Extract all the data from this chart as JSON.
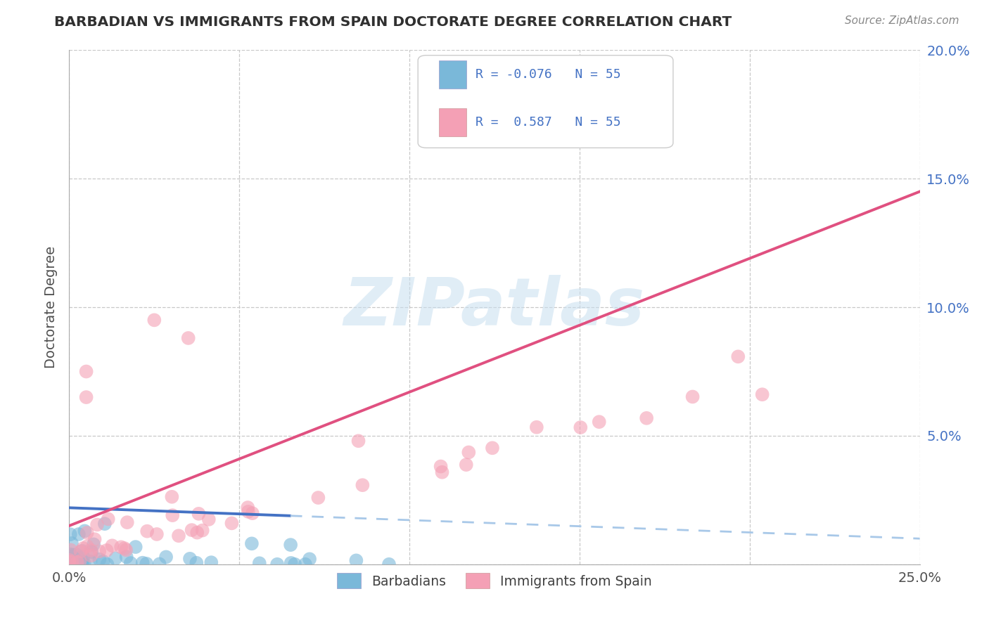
{
  "title": "BARBADIAN VS IMMIGRANTS FROM SPAIN DOCTORATE DEGREE CORRELATION CHART",
  "source": "Source: ZipAtlas.com",
  "ylabel": "Doctorate Degree",
  "xlim": [
    0.0,
    0.25
  ],
  "ylim": [
    0.0,
    0.2
  ],
  "xticks": [
    0.0,
    0.05,
    0.1,
    0.15,
    0.2,
    0.25
  ],
  "yticks": [
    0.0,
    0.05,
    0.1,
    0.15,
    0.2
  ],
  "xticklabels_show": [
    "0.0%",
    "",
    "",
    "",
    "",
    "25.0%"
  ],
  "yticklabels_right": [
    "",
    "5.0%",
    "10.0%",
    "15.0%",
    "20.0%"
  ],
  "r_barbadian": -0.076,
  "n_barbadian": 55,
  "r_spain": 0.587,
  "n_spain": 55,
  "color_barbadian": "#7ab8d9",
  "color_spain": "#f4a0b5",
  "color_barbadian_line_solid": "#4472c4",
  "color_barbadian_line_dash": "#a8c8e8",
  "color_spain_line": "#e05080",
  "background_color": "#ffffff",
  "grid_color": "#c8c8c8",
  "title_color": "#303030",
  "axis_label_color": "#505050",
  "watermark_text": "ZIPatlas",
  "watermark_color": "#c8dff0",
  "legend_r_color": "#4472c4",
  "tick_label_color": "#505050"
}
